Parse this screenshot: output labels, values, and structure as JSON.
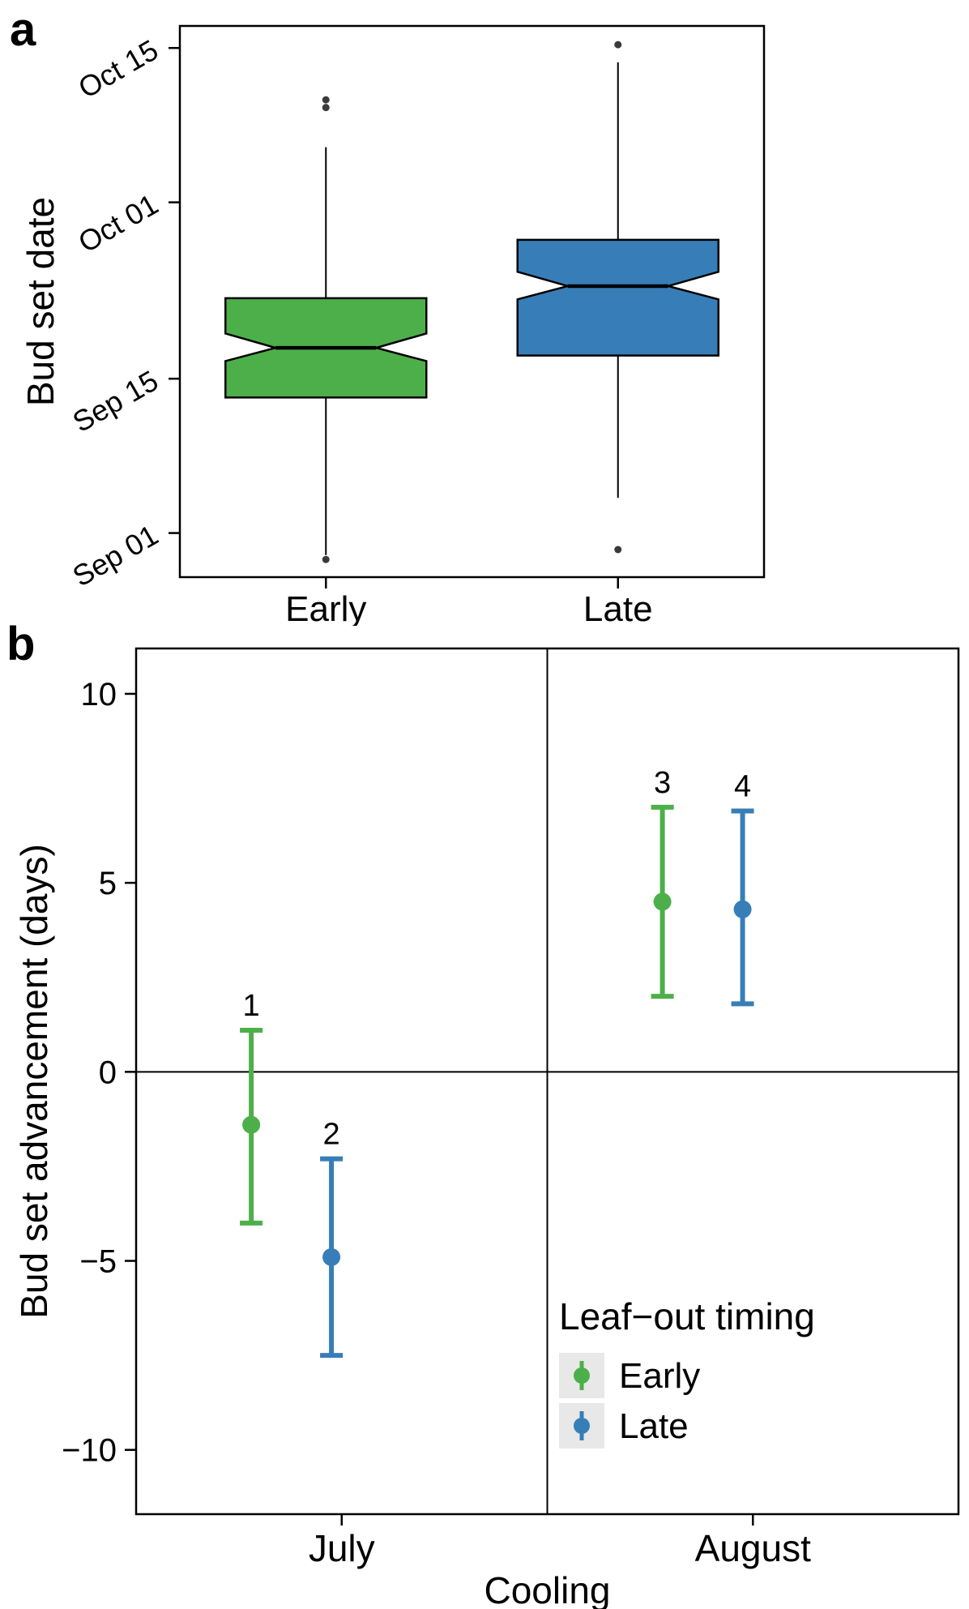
{
  "labels": {
    "panel_a": "a",
    "panel_b": "b"
  },
  "colors": {
    "early_green": "#4DAF4A",
    "late_blue": "#377EB8",
    "outlier_dot": "#3A3A3A",
    "axis_black": "#000000",
    "legend_key_bg": "#E8E8E8"
  },
  "chart_data": [
    {
      "id": "panel_a",
      "type": "boxplot",
      "title": "",
      "xlabel": "",
      "ylabel": "Bud set date",
      "y_unit": "days since Sep 1",
      "ylim": [
        -4,
        46
      ],
      "categories": [
        "Early",
        "Late"
      ],
      "y_ticks": [
        {
          "label": "Sep 01",
          "value": 0
        },
        {
          "label": "Sep 15",
          "value": 14
        },
        {
          "label": "Oct 01",
          "value": 30
        },
        {
          "label": "Oct 15",
          "value": 44
        }
      ],
      "boxes": [
        {
          "category": "Early",
          "color": "#4DAF4A",
          "whisker_low": -2.0,
          "q1": 12.3,
          "median": 16.8,
          "q3": 21.3,
          "whisker_high": 35.0,
          "notch_low": 15.6,
          "notch_high": 18.1,
          "outliers_low": [
            -2.4
          ],
          "outliers_high": [
            38.6,
            39.3
          ]
        },
        {
          "category": "Late",
          "color": "#377EB8",
          "whisker_low": 3.2,
          "q1": 16.1,
          "median": 22.4,
          "q3": 26.6,
          "whisker_high": 42.7,
          "notch_low": 21.2,
          "notch_high": 23.7,
          "outliers_low": [
            -1.5
          ],
          "outliers_high": [
            44.3
          ]
        }
      ]
    },
    {
      "id": "panel_b",
      "type": "pointrange",
      "title": "",
      "xlabel": "Cooling",
      "ylabel": "Bud set advancement (days)",
      "ylim": [
        -11.7,
        11.2
      ],
      "reference_line": 0,
      "facets": [
        "July",
        "August"
      ],
      "groups": [
        "Early",
        "Late"
      ],
      "y_ticks": [
        {
          "label": "10",
          "value": 10
        },
        {
          "label": "5",
          "value": 5
        },
        {
          "label": "0",
          "value": 0
        },
        {
          "label": "−5",
          "value": -5
        },
        {
          "label": "−10",
          "value": -10
        }
      ],
      "points": [
        {
          "label": "1",
          "facet": "July",
          "group": "Early",
          "color": "#4DAF4A",
          "mean": -1.4,
          "lo": -4.0,
          "hi": 1.1
        },
        {
          "label": "2",
          "facet": "July",
          "group": "Late",
          "color": "#377EB8",
          "mean": -4.9,
          "lo": -7.5,
          "hi": -2.3
        },
        {
          "label": "3",
          "facet": "August",
          "group": "Early",
          "color": "#4DAF4A",
          "mean": 4.5,
          "lo": 2.0,
          "hi": 7.0
        },
        {
          "label": "4",
          "facet": "August",
          "group": "Late",
          "color": "#377EB8",
          "mean": 4.3,
          "lo": 1.8,
          "hi": 6.9
        }
      ],
      "legend": {
        "title": "Leaf−out timing",
        "position": "inside bottom-right",
        "entries": [
          {
            "label": "Early",
            "color": "#4DAF4A"
          },
          {
            "label": "Late",
            "color": "#377EB8"
          }
        ]
      }
    }
  ]
}
